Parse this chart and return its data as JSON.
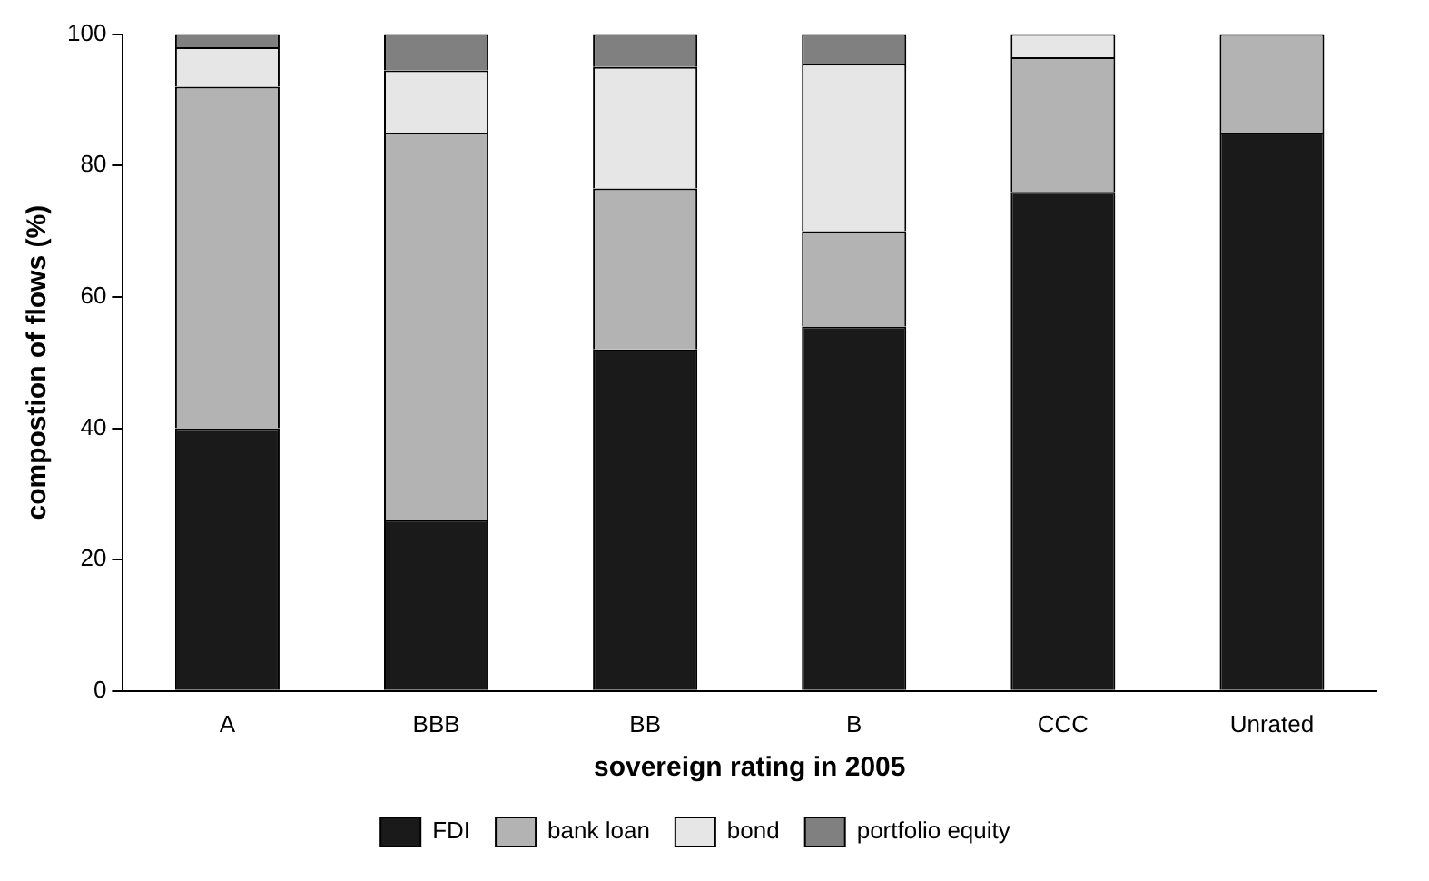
{
  "chart_data": {
    "type": "bar",
    "stacked": true,
    "xlabel": "sovereign rating in 2005",
    "ylabel": "compostion of flows (%)",
    "categories": [
      "A",
      "BBB",
      "BB",
      "B",
      "CCC",
      "Unrated"
    ],
    "series": [
      {
        "name": "FDI",
        "color": "#1a1a1a",
        "values": [
          40,
          26,
          52,
          55.5,
          76,
          85
        ]
      },
      {
        "name": "bank loan",
        "color": "#b3b3b3",
        "values": [
          52,
          59,
          24.5,
          14.5,
          20.5,
          15
        ]
      },
      {
        "name": "bond",
        "color": "#e6e6e6",
        "values": [
          6,
          9.5,
          18.5,
          25.5,
          3.5,
          0
        ]
      },
      {
        "name": "portfolio equity",
        "color": "#808080",
        "values": [
          2,
          5.5,
          5,
          4.5,
          0,
          0
        ]
      }
    ],
    "ylim": [
      0,
      100
    ],
    "yticks": [
      0,
      20,
      40,
      60,
      80,
      100
    ],
    "grid": false,
    "legend": "bottom"
  }
}
